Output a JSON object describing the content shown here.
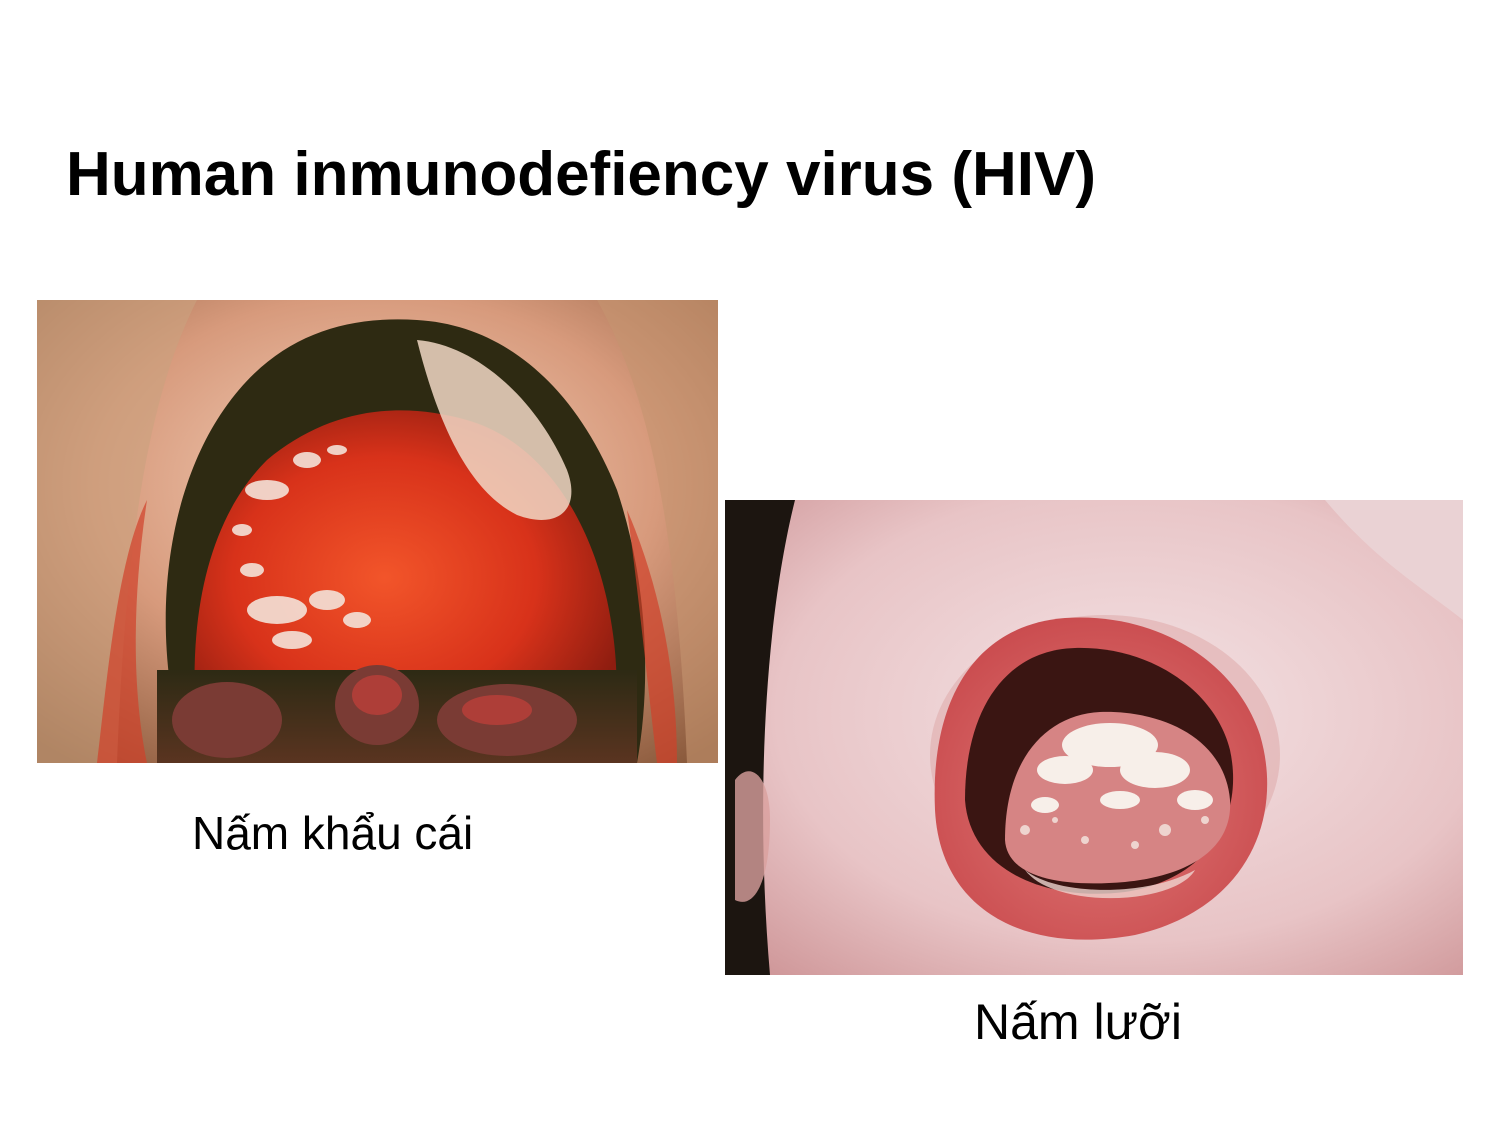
{
  "slide": {
    "title": "Human inmunodefiency virus (HIV)"
  },
  "figures": [
    {
      "photo_name": "oral-palate-photo",
      "caption": "Nấm khẩu cái"
    },
    {
      "photo_name": "oral-tongue-photo",
      "caption": "Nấm lưỡi"
    }
  ],
  "colors": {
    "background": "#ffffff",
    "text": "#000000"
  }
}
